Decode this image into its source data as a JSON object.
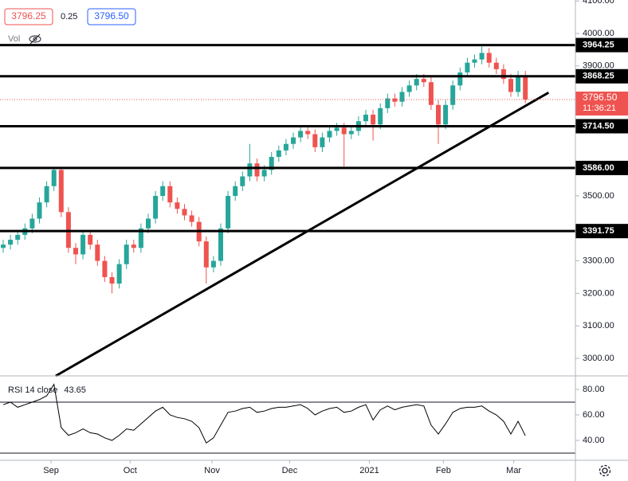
{
  "header": {
    "bid": "3796.25",
    "spread": "0.25",
    "ask": "3796.50",
    "vol": "Vol"
  },
  "chart_data": {
    "type": "candlestick",
    "ylim": [
      2946,
      4103
    ],
    "yticks": [
      {
        "value": 4100,
        "label": "4100.00"
      },
      {
        "value": 4000,
        "label": "4000.00"
      },
      {
        "value": 3900,
        "label": "3900.00"
      },
      {
        "value": 3500,
        "label": "3500.00"
      },
      {
        "value": 3300,
        "label": "3300.00"
      },
      {
        "value": 3200,
        "label": "3200.00"
      },
      {
        "value": 3100,
        "label": "3100.00"
      },
      {
        "value": 3000,
        "label": "3000.00"
      }
    ],
    "xticks": [
      {
        "value": 6.6,
        "label": "Sep"
      },
      {
        "value": 17.5,
        "label": "Oct"
      },
      {
        "value": 28.8,
        "label": "Nov"
      },
      {
        "value": 39.5,
        "label": "Dec"
      },
      {
        "value": 50.5,
        "label": "2021"
      },
      {
        "value": 60.7,
        "label": "Feb"
      },
      {
        "value": 70.4,
        "label": "Mar"
      }
    ],
    "colors": {
      "up": "#26a69a",
      "down": "#ef5350"
    },
    "open": [
      3340,
      3350,
      3365,
      3380,
      3400,
      3430,
      3480,
      3530,
      3580,
      3450,
      3340,
      3320,
      3380,
      3350,
      3300,
      3250,
      3230,
      3290,
      3350,
      3340,
      3400,
      3430,
      3500,
      3530,
      3480,
      3460,
      3440,
      3420,
      3360,
      3280,
      3300,
      3400,
      3500,
      3530,
      3560,
      3600,
      3560,
      3580,
      3620,
      3640,
      3660,
      3680,
      3700,
      3690,
      3650,
      3680,
      3700,
      3710,
      3690,
      3700,
      3730,
      3750,
      3720,
      3770,
      3800,
      3790,
      3820,
      3840,
      3860,
      3850,
      3780,
      3720,
      3780,
      3840,
      3880,
      3910,
      3920,
      3940,
      3910,
      3890,
      3860,
      3820,
      3870
    ],
    "high": [
      3365,
      3380,
      3395,
      3415,
      3445,
      3495,
      3545,
      3586,
      3586,
      3465,
      3355,
      3395,
      3395,
      3365,
      3315,
      3265,
      3305,
      3365,
      3365,
      3415,
      3445,
      3515,
      3545,
      3545,
      3495,
      3475,
      3455,
      3435,
      3375,
      3315,
      3415,
      3515,
      3545,
      3575,
      3660,
      3615,
      3595,
      3635,
      3655,
      3675,
      3695,
      3715,
      3715,
      3705,
      3695,
      3715,
      3725,
      3725,
      3715,
      3745,
      3765,
      3765,
      3785,
      3815,
      3815,
      3835,
      3855,
      3875,
      3875,
      3865,
      3795,
      3795,
      3855,
      3895,
      3925,
      3935,
      3960,
      3955,
      3925,
      3905,
      3875,
      3885,
      3885
    ],
    "low": [
      3325,
      3335,
      3350,
      3365,
      3385,
      3415,
      3465,
      3515,
      3435,
      3325,
      3290,
      3305,
      3335,
      3285,
      3235,
      3200,
      3215,
      3275,
      3325,
      3325,
      3385,
      3415,
      3485,
      3465,
      3445,
      3425,
      3405,
      3345,
      3230,
      3265,
      3285,
      3385,
      3485,
      3515,
      3545,
      3545,
      3545,
      3565,
      3605,
      3625,
      3645,
      3665,
      3675,
      3635,
      3635,
      3665,
      3685,
      3590,
      3675,
      3685,
      3715,
      3670,
      3705,
      3755,
      3775,
      3775,
      3805,
      3825,
      3835,
      3765,
      3660,
      3705,
      3765,
      3825,
      3865,
      3895,
      3905,
      3895,
      3875,
      3845,
      3805,
      3805,
      3785
    ],
    "close": [
      3350,
      3365,
      3380,
      3400,
      3430,
      3480,
      3530,
      3580,
      3450,
      3340,
      3320,
      3380,
      3350,
      3300,
      3250,
      3230,
      3290,
      3350,
      3340,
      3400,
      3430,
      3500,
      3530,
      3480,
      3460,
      3440,
      3420,
      3360,
      3280,
      3300,
      3400,
      3500,
      3530,
      3560,
      3600,
      3560,
      3580,
      3620,
      3640,
      3660,
      3680,
      3700,
      3690,
      3650,
      3680,
      3700,
      3710,
      3690,
      3700,
      3730,
      3750,
      3720,
      3770,
      3800,
      3790,
      3820,
      3840,
      3860,
      3850,
      3780,
      3720,
      3780,
      3840,
      3880,
      3910,
      3920,
      3940,
      3910,
      3890,
      3860,
      3820,
      3870,
      3796.5
    ],
    "levels": [
      {
        "value": 3964.25,
        "label": "3964.25"
      },
      {
        "value": 3868.25,
        "label": "3868.25"
      },
      {
        "value": 3714.5,
        "label": "3714.50"
      },
      {
        "value": 3586,
        "label": "3586.00"
      },
      {
        "value": 3391.75,
        "label": "3391.75"
      }
    ],
    "trendline": {
      "x": [
        7.25,
        75.2
      ],
      "y": [
        2946,
        3818
      ]
    },
    "last_price": 3796.5,
    "last_label": "3796.50",
    "countdown": "11:36:21",
    "rsi": {
      "label": "RSI 14 close",
      "value_label": "43.65",
      "color": "#000000",
      "ylim": [
        24.4,
        90.6
      ],
      "yticks": [
        {
          "value": 80,
          "label": "80.00"
        },
        {
          "value": 60,
          "label": "60.00"
        },
        {
          "value": 40,
          "label": "40.00"
        }
      ],
      "bands": [
        70,
        30
      ],
      "values": [
        68,
        70,
        66,
        68,
        70,
        72,
        75,
        84,
        50,
        44,
        46,
        49,
        46,
        45,
        42,
        40,
        44,
        49,
        48,
        53,
        58,
        63,
        66,
        60,
        58,
        57,
        55,
        50,
        38,
        42,
        52,
        62,
        63,
        65,
        66,
        62,
        63,
        65,
        66,
        66,
        67,
        68,
        65,
        60,
        63,
        65,
        66,
        62,
        63,
        66,
        68,
        56,
        64,
        67,
        64,
        66,
        67,
        68,
        67,
        52,
        45,
        53,
        62,
        65,
        66,
        66,
        67,
        63,
        60,
        55,
        45,
        55,
        43.65
      ]
    }
  }
}
